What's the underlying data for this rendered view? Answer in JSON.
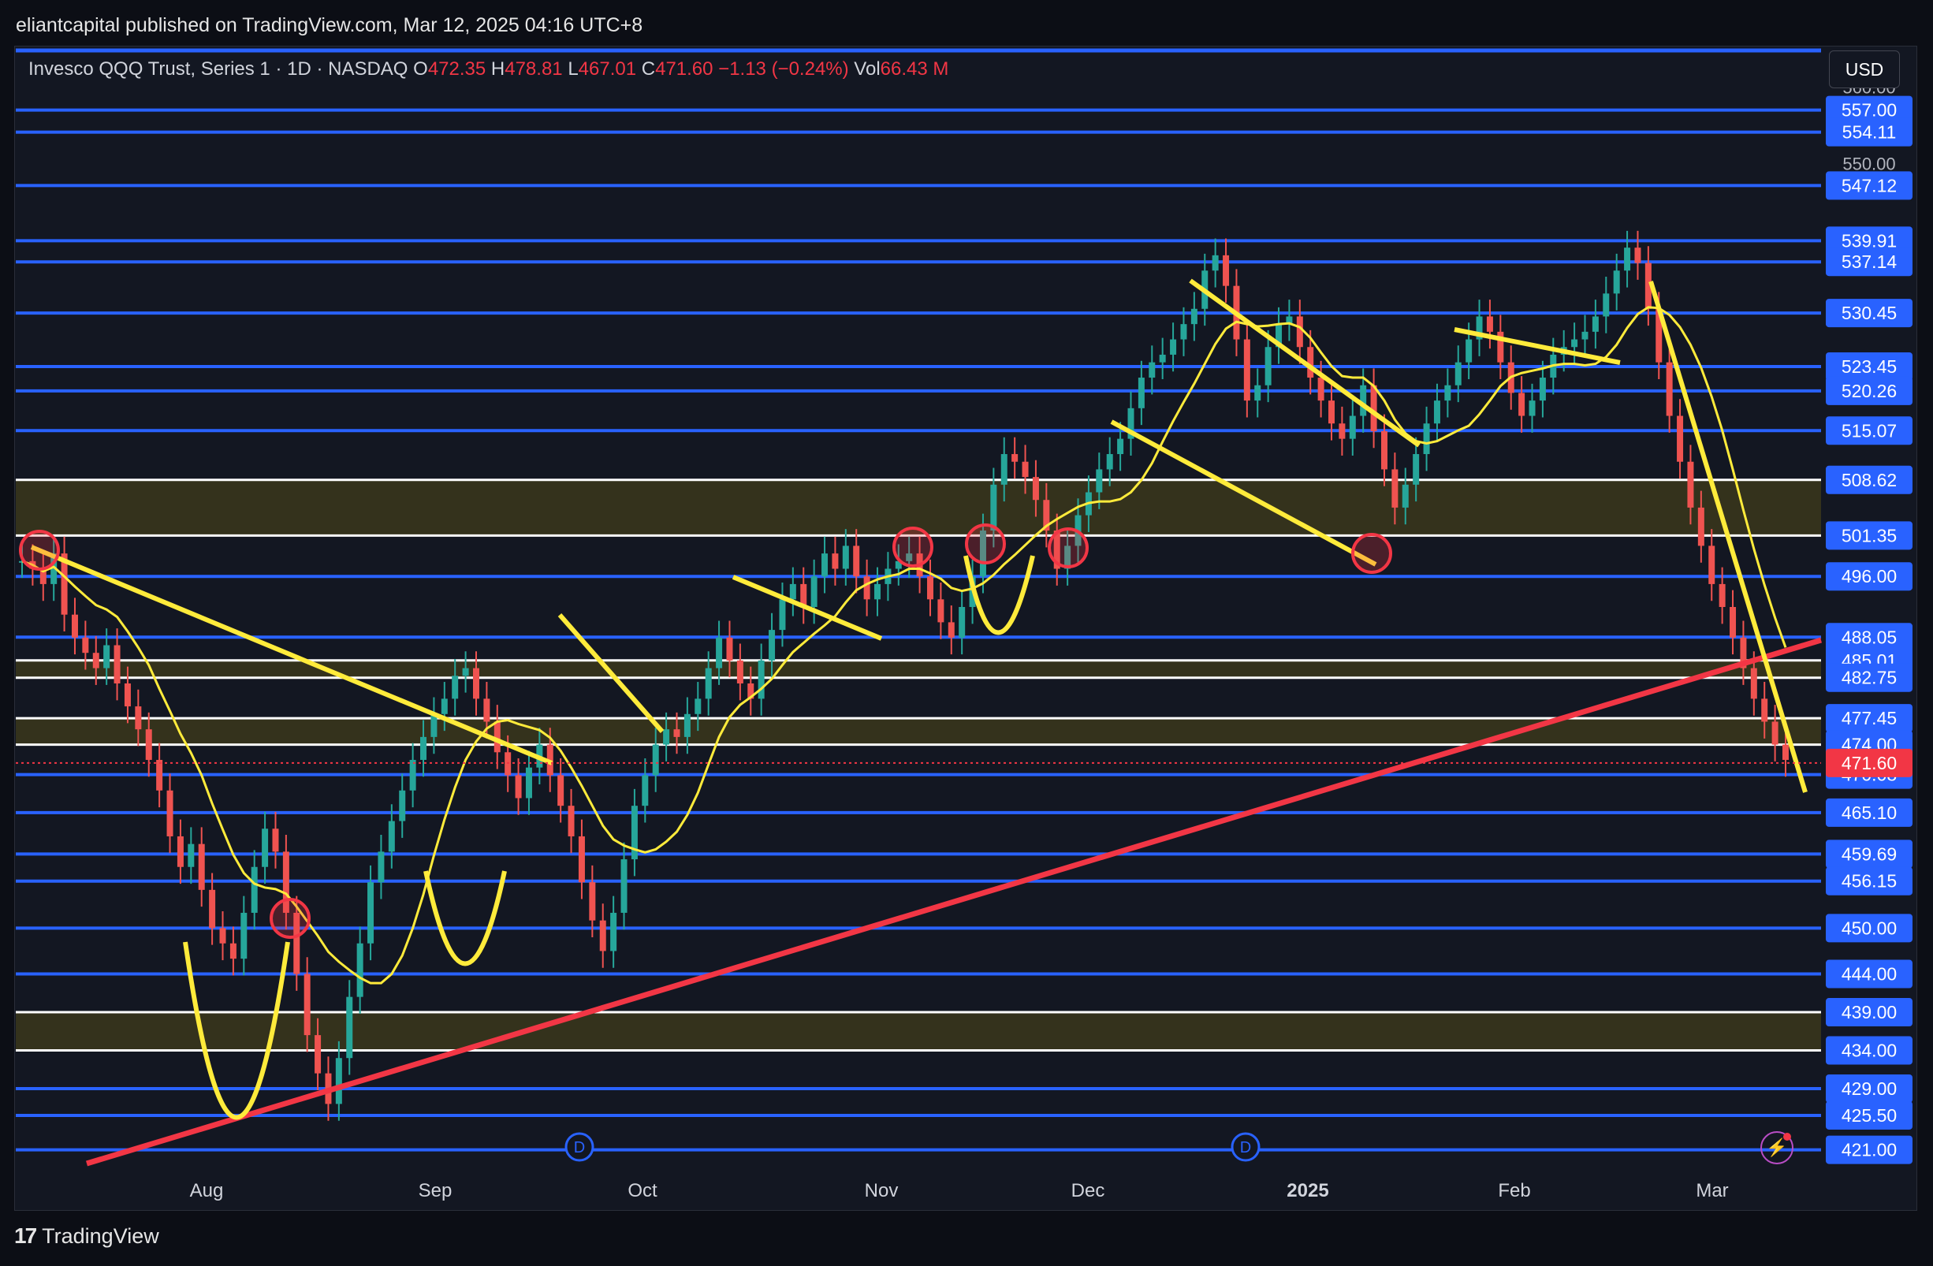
{
  "publish": {
    "author": "eliantcapital",
    "text": "eliantcapital published on TradingView.com, Mar 12, 2025 04:16 UTC+8"
  },
  "legend": {
    "symbol": "Invesco QQQ Trust, Series 1 · 1D · NASDAQ",
    "o_label": "O",
    "o_value": "472.35",
    "h_label": "H",
    "h_value": "478.81",
    "l_label": "L",
    "l_value": "467.01",
    "c_label": "C",
    "c_value": "471.60",
    "change": "−1.13 (−0.24%)",
    "vol_label": "Vol",
    "vol_value": "66.43 M"
  },
  "currency_button": "USD",
  "footer": {
    "logo": "17",
    "brand": "TradingView"
  },
  "colors": {
    "background": "#131722",
    "level_line": "#2962ff",
    "trendline_red": "#f23645",
    "annotation_yellow": "#ffeb3b",
    "candle_up": "#26a69a",
    "candle_down": "#ef5350",
    "zone_fill": "#3d3a1c"
  },
  "chart_data": {
    "type": "candlestick",
    "symbol": "QQQ",
    "timeframe": "1D",
    "ylim": [
      419,
      565
    ],
    "y_ticks": [
      "560.00",
      "550.00"
    ],
    "x_ticks": [
      "Aug",
      "Sep",
      "Oct",
      "Nov",
      "Dec",
      "2025",
      "Feb",
      "Mar"
    ],
    "last_price": "471.60",
    "price_levels": [
      "557.00",
      "554.11",
      "547.12",
      "539.91",
      "537.14",
      "530.45",
      "523.45",
      "520.26",
      "515.07",
      "508.62",
      "501.35",
      "496.00",
      "488.05",
      "485.01",
      "482.75",
      "477.45",
      "474.00",
      "470.08",
      "465.10",
      "459.69",
      "456.15",
      "450.00",
      "444.00",
      "439.00",
      "434.00",
      "429.00",
      "425.50",
      "421.00"
    ],
    "zones": [
      {
        "from": 501.35,
        "to": 508.62
      },
      {
        "from": 482.75,
        "to": 485.01
      },
      {
        "from": 474.0,
        "to": 477.45
      },
      {
        "from": 434.0,
        "to": 439.0
      }
    ],
    "dividend_markers": [
      "D",
      "D"
    ],
    "closes": [
      498,
      497,
      495,
      499,
      491,
      488,
      486,
      484,
      487,
      482,
      479,
      476,
      472,
      468,
      462,
      458,
      461,
      455,
      450,
      448,
      446,
      452,
      458,
      463,
      460,
      452,
      444,
      436,
      431,
      427,
      433,
      441,
      448,
      456,
      460,
      464,
      468,
      472,
      475,
      478,
      480,
      483,
      484,
      480,
      477,
      473,
      470,
      467,
      471,
      474,
      470,
      466,
      462,
      456,
      451,
      447,
      452,
      459,
      466,
      470,
      474,
      476,
      475,
      478,
      480,
      484,
      488,
      485,
      482,
      480,
      485,
      489,
      493,
      495,
      492,
      496,
      499,
      497,
      500,
      496,
      493,
      495,
      497,
      498,
      499,
      496,
      493,
      490,
      488,
      492,
      496,
      502,
      508,
      512,
      511,
      509,
      506,
      502,
      497,
      500,
      504,
      507,
      510,
      512,
      514,
      518,
      522,
      524,
      525,
      527,
      529,
      531,
      536,
      538,
      534,
      527,
      519,
      521,
      526,
      529,
      530,
      526,
      522,
      519,
      516,
      514,
      517,
      521,
      515,
      510,
      505,
      508,
      512,
      516,
      519,
      521,
      524,
      527,
      530,
      528,
      524,
      520,
      517,
      519,
      522,
      525,
      526,
      527,
      528,
      530,
      533,
      536,
      539,
      537,
      531,
      524,
      517,
      511,
      505,
      500,
      495,
      492,
      488,
      484,
      480,
      477,
      474,
      472
    ]
  }
}
